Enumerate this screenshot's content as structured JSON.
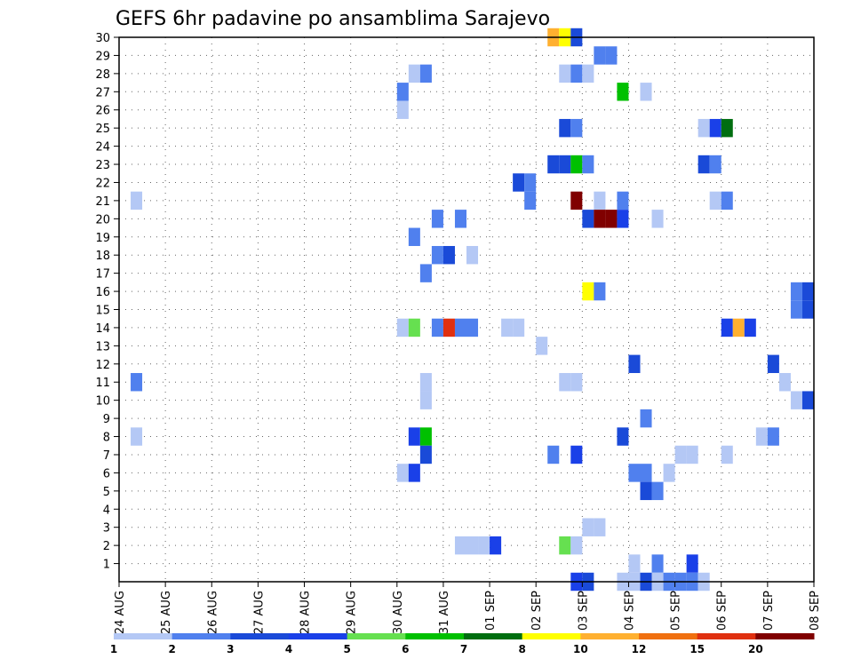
{
  "chart_data": {
    "type": "heatmap",
    "title": "GEFS 6hr padavine po ansamblima Sarajevo",
    "xlabel": "",
    "ylabel": "",
    "x_tick_labels": [
      "24 AUG",
      "25 AUG",
      "26 AUG",
      "27 AUG",
      "28 AUG",
      "29 AUG",
      "30 AUG",
      "31 AUG",
      "01 SEP",
      "02 SEP",
      "03 SEP",
      "04 SEP",
      "05 SEP",
      "06 SEP",
      "07 SEP",
      "08 SEP"
    ],
    "y_tick_labels": [
      "1",
      "2",
      "3",
      "4",
      "5",
      "6",
      "7",
      "8",
      "9",
      "10",
      "11",
      "12",
      "13",
      "14",
      "15",
      "16",
      "17",
      "18",
      "19",
      "20",
      "21",
      "22",
      "23",
      "24",
      "25",
      "26",
      "27",
      "28",
      "29",
      "30"
    ],
    "x_range_days": [
      0,
      15
    ],
    "y_range": [
      0,
      30
    ],
    "step_hours": 6,
    "grid": true,
    "grid_style": "dotted",
    "value_note": "x = days after 24 AUG in 0.25-day (6hr) steps, y = ensemble member, v = 6hr precipitation in mm",
    "cells": [
      {
        "x": 0.25,
        "y": 21,
        "v": 1
      },
      {
        "x": 0.25,
        "y": 11,
        "v": 2
      },
      {
        "x": 0.25,
        "y": 8,
        "v": 1
      },
      {
        "x": 6.0,
        "y": 27,
        "v": 2
      },
      {
        "x": 6.0,
        "y": 26,
        "v": 1
      },
      {
        "x": 6.0,
        "y": 14,
        "v": 1
      },
      {
        "x": 6.0,
        "y": 6,
        "v": 1
      },
      {
        "x": 6.25,
        "y": 28,
        "v": 1
      },
      {
        "x": 6.25,
        "y": 19,
        "v": 2
      },
      {
        "x": 6.25,
        "y": 14,
        "v": 5
      },
      {
        "x": 6.25,
        "y": 8,
        "v": 4
      },
      {
        "x": 6.25,
        "y": 6,
        "v": 4
      },
      {
        "x": 6.5,
        "y": 28,
        "v": 2
      },
      {
        "x": 6.5,
        "y": 17,
        "v": 2
      },
      {
        "x": 6.5,
        "y": 11,
        "v": 1
      },
      {
        "x": 6.5,
        "y": 10,
        "v": 1
      },
      {
        "x": 6.5,
        "y": 8,
        "v": 6
      },
      {
        "x": 6.5,
        "y": 7,
        "v": 3
      },
      {
        "x": 6.75,
        "y": 20,
        "v": 2
      },
      {
        "x": 6.75,
        "y": 18,
        "v": 2
      },
      {
        "x": 6.75,
        "y": 14,
        "v": 2
      },
      {
        "x": 7.0,
        "y": 18,
        "v": 3
      },
      {
        "x": 7.0,
        "y": 14,
        "v": 15
      },
      {
        "x": 7.25,
        "y": 20,
        "v": 2
      },
      {
        "x": 7.25,
        "y": 14,
        "v": 2
      },
      {
        "x": 7.25,
        "y": 2,
        "v": 1
      },
      {
        "x": 7.5,
        "y": 18,
        "v": 1
      },
      {
        "x": 7.5,
        "y": 14,
        "v": 2
      },
      {
        "x": 7.5,
        "y": 2,
        "v": 1
      },
      {
        "x": 7.75,
        "y": 2,
        "v": 1
      },
      {
        "x": 8.0,
        "y": 2,
        "v": 4
      },
      {
        "x": 8.25,
        "y": 14,
        "v": 1
      },
      {
        "x": 8.5,
        "y": 22,
        "v": 3
      },
      {
        "x": 8.5,
        "y": 14,
        "v": 1
      },
      {
        "x": 8.75,
        "y": 22,
        "v": 2
      },
      {
        "x": 8.75,
        "y": 21,
        "v": 2
      },
      {
        "x": 9.0,
        "y": 13,
        "v": 1
      },
      {
        "x": 9.25,
        "y": 30,
        "v": 10
      },
      {
        "x": 9.25,
        "y": 23,
        "v": 3
      },
      {
        "x": 9.25,
        "y": 7,
        "v": 2
      },
      {
        "x": 9.5,
        "y": 30,
        "v": 8
      },
      {
        "x": 9.5,
        "y": 28,
        "v": 1
      },
      {
        "x": 9.5,
        "y": 25,
        "v": 3
      },
      {
        "x": 9.5,
        "y": 23,
        "v": 3
      },
      {
        "x": 9.5,
        "y": 11,
        "v": 1
      },
      {
        "x": 9.5,
        "y": 2,
        "v": 5
      },
      {
        "x": 9.75,
        "y": 30,
        "v": 3
      },
      {
        "x": 9.75,
        "y": 28,
        "v": 2
      },
      {
        "x": 9.75,
        "y": 25,
        "v": 2
      },
      {
        "x": 9.75,
        "y": 23,
        "v": 6
      },
      {
        "x": 9.75,
        "y": 21,
        "v": 20
      },
      {
        "x": 9.75,
        "y": 11,
        "v": 1
      },
      {
        "x": 9.75,
        "y": 7,
        "v": 4
      },
      {
        "x": 9.75,
        "y": 2,
        "v": 1
      },
      {
        "x": 9.75,
        "y": 0,
        "v": 4
      },
      {
        "x": 10.0,
        "y": 28,
        "v": 1
      },
      {
        "x": 10.0,
        "y": 23,
        "v": 2
      },
      {
        "x": 10.0,
        "y": 20,
        "v": 3
      },
      {
        "x": 10.0,
        "y": 16,
        "v": 8
      },
      {
        "x": 10.0,
        "y": 3,
        "v": 1
      },
      {
        "x": 10.0,
        "y": 0,
        "v": 3
      },
      {
        "x": 10.25,
        "y": 29,
        "v": 2
      },
      {
        "x": 10.25,
        "y": 21,
        "v": 1
      },
      {
        "x": 10.25,
        "y": 20,
        "v": 20
      },
      {
        "x": 10.25,
        "y": 16,
        "v": 2
      },
      {
        "x": 10.25,
        "y": 3,
        "v": 1
      },
      {
        "x": 10.5,
        "y": 29,
        "v": 2
      },
      {
        "x": 10.5,
        "y": 20,
        "v": 20
      },
      {
        "x": 10.75,
        "y": 27,
        "v": 6
      },
      {
        "x": 10.75,
        "y": 21,
        "v": 2
      },
      {
        "x": 10.75,
        "y": 20,
        "v": 4
      },
      {
        "x": 10.75,
        "y": 8,
        "v": 3
      },
      {
        "x": 10.75,
        "y": 0,
        "v": 1
      },
      {
        "x": 11.0,
        "y": 12,
        "v": 3
      },
      {
        "x": 11.0,
        "y": 6,
        "v": 2
      },
      {
        "x": 11.0,
        "y": 1,
        "v": 1
      },
      {
        "x": 11.0,
        "y": 0,
        "v": 1
      },
      {
        "x": 11.25,
        "y": 27,
        "v": 1
      },
      {
        "x": 11.25,
        "y": 9,
        "v": 2
      },
      {
        "x": 11.25,
        "y": 6,
        "v": 2
      },
      {
        "x": 11.25,
        "y": 5,
        "v": 3
      },
      {
        "x": 11.25,
        "y": 0,
        "v": 3
      },
      {
        "x": 11.5,
        "y": 20,
        "v": 1
      },
      {
        "x": 11.5,
        "y": 5,
        "v": 2
      },
      {
        "x": 11.5,
        "y": 1,
        "v": 2
      },
      {
        "x": 11.5,
        "y": 0,
        "v": 1
      },
      {
        "x": 11.75,
        "y": 6,
        "v": 1
      },
      {
        "x": 11.75,
        "y": 0,
        "v": 2
      },
      {
        "x": 12.0,
        "y": 7,
        "v": 1
      },
      {
        "x": 12.0,
        "y": 0,
        "v": 2
      },
      {
        "x": 12.25,
        "y": 7,
        "v": 1
      },
      {
        "x": 12.25,
        "y": 1,
        "v": 4
      },
      {
        "x": 12.25,
        "y": 0,
        "v": 2
      },
      {
        "x": 12.5,
        "y": 25,
        "v": 1
      },
      {
        "x": 12.5,
        "y": 23,
        "v": 3
      },
      {
        "x": 12.5,
        "y": 0,
        "v": 1
      },
      {
        "x": 12.75,
        "y": 25,
        "v": 4
      },
      {
        "x": 12.75,
        "y": 23,
        "v": 2
      },
      {
        "x": 12.75,
        "y": 21,
        "v": 1
      },
      {
        "x": 13.0,
        "y": 25,
        "v": 7
      },
      {
        "x": 13.0,
        "y": 21,
        "v": 2
      },
      {
        "x": 13.0,
        "y": 14,
        "v": 4
      },
      {
        "x": 13.0,
        "y": 7,
        "v": 1
      },
      {
        "x": 13.25,
        "y": 14,
        "v": 10
      },
      {
        "x": 13.5,
        "y": 14,
        "v": 4
      },
      {
        "x": 13.75,
        "y": 8,
        "v": 1
      },
      {
        "x": 14.0,
        "y": 12,
        "v": 3
      },
      {
        "x": 14.0,
        "y": 8,
        "v": 2
      },
      {
        "x": 14.25,
        "y": 11,
        "v": 1
      },
      {
        "x": 14.5,
        "y": 16,
        "v": 2
      },
      {
        "x": 14.5,
        "y": 15,
        "v": 2
      },
      {
        "x": 14.5,
        "y": 10,
        "v": 1
      },
      {
        "x": 14.75,
        "y": 16,
        "v": 3
      },
      {
        "x": 14.75,
        "y": 15,
        "v": 3
      },
      {
        "x": 14.75,
        "y": 10,
        "v": 3
      }
    ],
    "legend": {
      "labels": [
        "1",
        "2",
        "3",
        "4",
        "5",
        "6",
        "7",
        "8",
        "10",
        "12",
        "15",
        "20"
      ],
      "colors": [
        "#b4c8f5",
        "#5080ee",
        "#1a4ad8",
        "#1a40e8",
        "#66e050",
        "#00c000",
        "#006e10",
        "#ffff00",
        "#ffb030",
        "#f07010",
        "#e03010",
        "#800000"
      ]
    }
  }
}
